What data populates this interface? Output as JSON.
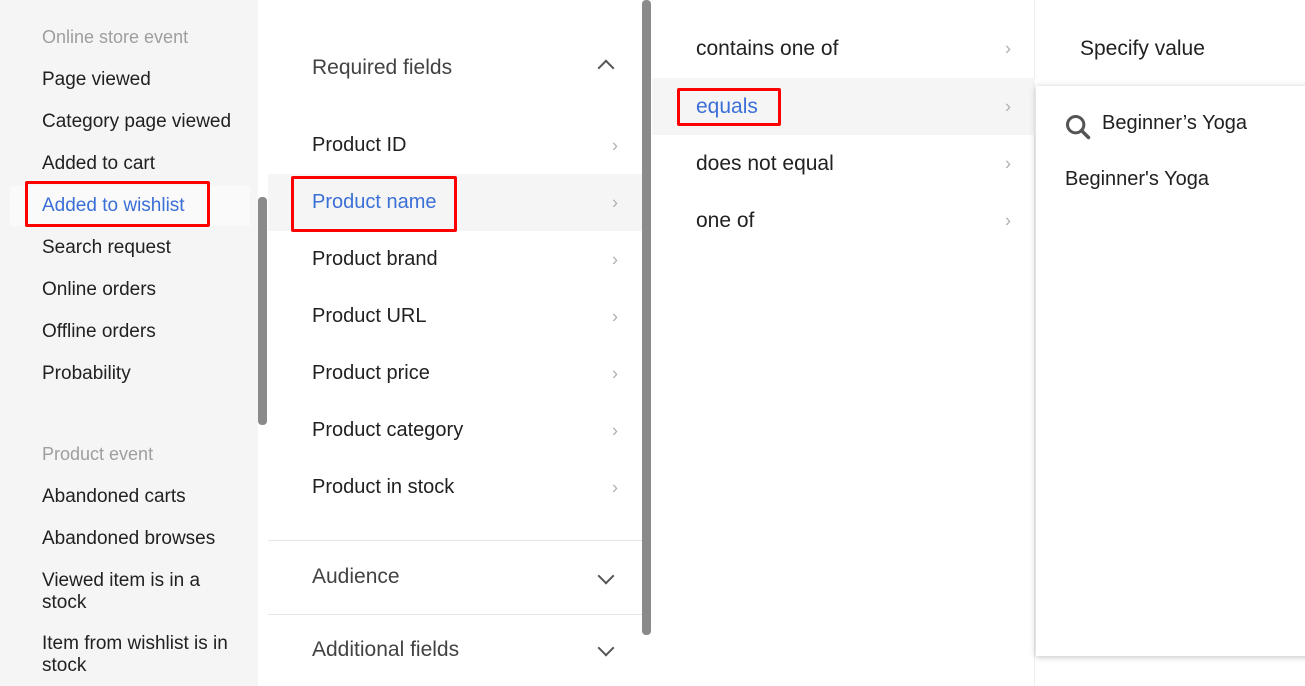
{
  "sidebar": {
    "groups": [
      {
        "heading": "Online store event",
        "items": [
          "Page viewed",
          "Category page viewed",
          "Added to cart",
          "Added to wishlist",
          "Search request",
          "Online orders",
          "Offline orders",
          "Probability"
        ]
      },
      {
        "heading": "Product event",
        "items": [
          "Abandoned carts",
          "Abandoned browses",
          "Viewed item is in a stock",
          "Item from wishlist is in stock"
        ]
      }
    ],
    "selected": "Added to wishlist"
  },
  "fields": {
    "required_label": "Required fields",
    "items": [
      "Product ID",
      "Product name",
      "Product brand",
      "Product URL",
      "Product price",
      "Product category",
      "Product in stock"
    ],
    "selected": "Product name",
    "audience_label": "Audience",
    "additional_label": "Additional fields"
  },
  "operators": {
    "items": [
      "contains one of",
      "equals",
      "does not equal",
      "one of"
    ],
    "selected": "equals"
  },
  "value": {
    "title": "Specify value",
    "search_value": "Beginner’s Yoga",
    "options": [
      "Beginner's Yoga"
    ]
  },
  "colors": {
    "accent": "#3b6fd8",
    "highlight": "#ff0000"
  }
}
